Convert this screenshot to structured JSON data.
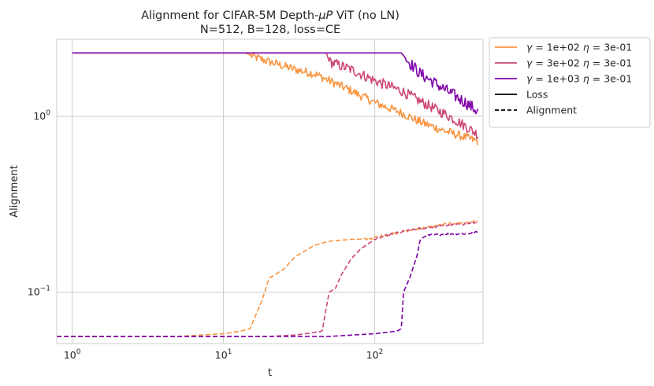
{
  "chart_data": {
    "type": "line",
    "title": {
      "line1_prefix": "Alignment for CIFAR-5M Depth-",
      "line1_mu": "μ",
      "line1_p": "P",
      "line1_suffix": " ViT (no LN)",
      "line2": "N=512, B=128, loss=CE"
    },
    "xlabel": "t",
    "ylabel": "Alignment",
    "xscale": "log",
    "yscale": "log",
    "xlim": [
      0.79,
      520
    ],
    "ylim": [
      0.051,
      2.75
    ],
    "x_ticks": [
      {
        "value": 1,
        "base": "10",
        "exp": "0"
      },
      {
        "value": 10,
        "base": "10",
        "exp": "1"
      },
      {
        "value": 100,
        "base": "10",
        "exp": "2"
      }
    ],
    "y_ticks": [
      {
        "value": 0.1,
        "base": "10",
        "exp": "−1"
      },
      {
        "value": 1,
        "base": "10",
        "exp": "0"
      }
    ],
    "grid": true,
    "legend_position": "outside-right-top",
    "legend": [
      {
        "kind": "series",
        "gamma": "1e+02",
        "eta": "3e-01",
        "color": "#f89540"
      },
      {
        "kind": "series",
        "gamma": "3e+02",
        "eta": "3e-01",
        "color": "#cc4778"
      },
      {
        "kind": "series",
        "gamma": "1e+03",
        "eta": "3e-01",
        "color": "#7e03a8"
      },
      {
        "kind": "style",
        "label": "Loss",
        "dash": "solid",
        "color": "#000000"
      },
      {
        "kind": "style",
        "label": "Alignment",
        "dash": "dashed",
        "color": "#000000"
      }
    ],
    "series": [
      {
        "name": "gamma=1e+02 eta=3e-01",
        "style": "Loss",
        "color": "#f89540",
        "points": [
          [
            1,
            2.3
          ],
          [
            14,
            2.3
          ],
          [
            16,
            2.18
          ],
          [
            20,
            2.05
          ],
          [
            30,
            1.85
          ],
          [
            40,
            1.75
          ],
          [
            50,
            1.6
          ],
          [
            70,
            1.4
          ],
          [
            100,
            1.2
          ],
          [
            150,
            1.05
          ],
          [
            200,
            0.93
          ],
          [
            300,
            0.82
          ],
          [
            400,
            0.76
          ],
          [
            480,
            0.72
          ]
        ],
        "noise": 0.05,
        "noise_start": 15
      },
      {
        "name": "gamma=3e+02 eta=3e-01",
        "style": "Loss",
        "color": "#cc4778",
        "points": [
          [
            1,
            2.3
          ],
          [
            48,
            2.3
          ],
          [
            50,
            2.05
          ],
          [
            70,
            1.85
          ],
          [
            100,
            1.6
          ],
          [
            150,
            1.4
          ],
          [
            200,
            1.22
          ],
          [
            300,
            1.02
          ],
          [
            400,
            0.88
          ],
          [
            480,
            0.79
          ]
        ],
        "noise": 0.06,
        "noise_start": 50
      },
      {
        "name": "gamma=1e+03 eta=3e-01",
        "style": "Loss",
        "color": "#7e03a8",
        "points": [
          [
            1,
            2.3
          ],
          [
            150,
            2.3
          ],
          [
            165,
            2.08
          ],
          [
            200,
            1.75
          ],
          [
            250,
            1.55
          ],
          [
            300,
            1.4
          ],
          [
            400,
            1.2
          ],
          [
            480,
            1.07
          ]
        ],
        "noise": 0.07,
        "noise_start": 160
      },
      {
        "name": "gamma=1e+02 eta=3e-01",
        "style": "Alignment",
        "color": "#f89540",
        "points": [
          [
            0.79,
            0.056
          ],
          [
            5,
            0.056
          ],
          [
            10,
            0.058
          ],
          [
            13,
            0.06
          ],
          [
            15,
            0.062
          ],
          [
            18,
            0.09
          ],
          [
            20,
            0.12
          ],
          [
            25,
            0.135
          ],
          [
            30,
            0.16
          ],
          [
            40,
            0.185
          ],
          [
            50,
            0.195
          ],
          [
            70,
            0.2
          ],
          [
            90,
            0.2
          ],
          [
            100,
            0.205
          ],
          [
            130,
            0.215
          ],
          [
            200,
            0.23
          ],
          [
            300,
            0.245
          ],
          [
            400,
            0.25
          ],
          [
            480,
            0.255
          ]
        ],
        "noise": 0.012,
        "noise_start": 80
      },
      {
        "name": "gamma=3e+02 eta=3e-01",
        "style": "Alignment",
        "color": "#cc4778",
        "points": [
          [
            0.79,
            0.056
          ],
          [
            20,
            0.056
          ],
          [
            30,
            0.057
          ],
          [
            40,
            0.059
          ],
          [
            45,
            0.06
          ],
          [
            47,
            0.075
          ],
          [
            50,
            0.1
          ],
          [
            55,
            0.105
          ],
          [
            60,
            0.125
          ],
          [
            70,
            0.155
          ],
          [
            80,
            0.175
          ],
          [
            100,
            0.2
          ],
          [
            130,
            0.215
          ],
          [
            200,
            0.23
          ],
          [
            300,
            0.24
          ],
          [
            400,
            0.245
          ],
          [
            480,
            0.25
          ]
        ],
        "noise": 0.012,
        "noise_start": 100
      },
      {
        "name": "gamma=1e+03 eta=3e-01",
        "style": "Alignment",
        "color": "#7e03a8",
        "points": [
          [
            0.79,
            0.056
          ],
          [
            50,
            0.056
          ],
          [
            100,
            0.058
          ],
          [
            140,
            0.06
          ],
          [
            150,
            0.062
          ],
          [
            155,
            0.1
          ],
          [
            170,
            0.12
          ],
          [
            190,
            0.16
          ],
          [
            200,
            0.2
          ],
          [
            220,
            0.21
          ],
          [
            300,
            0.215
          ],
          [
            400,
            0.215
          ],
          [
            480,
            0.22
          ]
        ],
        "noise": 0.012,
        "noise_start": 220
      }
    ]
  }
}
